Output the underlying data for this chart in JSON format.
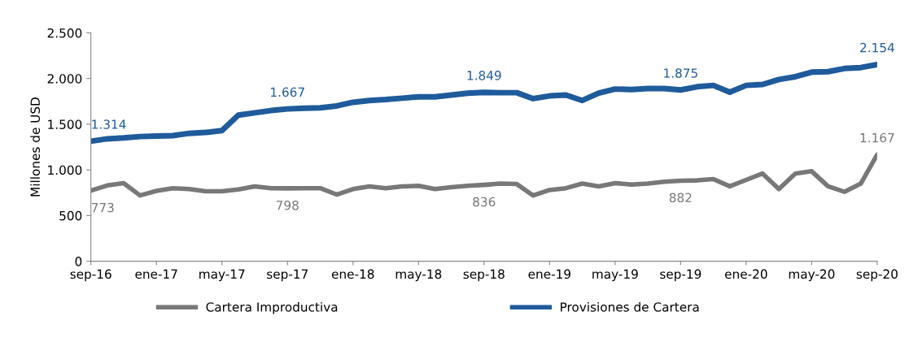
{
  "chart_data": {
    "type": "line",
    "ylabel": "Millones de USD",
    "categories": [
      "sep-16",
      null,
      null,
      null,
      "ene-17",
      null,
      null,
      null,
      "may-17",
      null,
      null,
      null,
      "sep-17",
      null,
      null,
      null,
      "ene-18",
      null,
      null,
      null,
      "may-18",
      null,
      null,
      null,
      "sep-18",
      null,
      null,
      null,
      "ene-19",
      null,
      null,
      null,
      "may-19",
      null,
      null,
      null,
      "sep-19",
      null,
      null,
      null,
      "ene-20",
      null,
      null,
      null,
      "may-20",
      null,
      null,
      null,
      "sep-20"
    ],
    "series": [
      {
        "name": "Cartera Improductiva",
        "color": "#787878",
        "values": [
          773,
          830,
          855,
          720,
          770,
          800,
          790,
          765,
          765,
          785,
          820,
          800,
          798,
          800,
          800,
          730,
          790,
          820,
          800,
          820,
          825,
          790,
          810,
          825,
          836,
          850,
          845,
          720,
          780,
          800,
          850,
          820,
          855,
          840,
          850,
          870,
          882,
          885,
          900,
          820,
          890,
          960,
          790,
          960,
          985,
          820,
          760,
          850,
          1167
        ],
        "value_labels": [
          "773",
          null,
          null,
          null,
          null,
          null,
          null,
          null,
          null,
          null,
          null,
          null,
          "798",
          null,
          null,
          null,
          null,
          null,
          null,
          null,
          null,
          null,
          null,
          null,
          "836",
          null,
          null,
          null,
          null,
          null,
          null,
          null,
          null,
          null,
          null,
          null,
          "882",
          null,
          null,
          null,
          null,
          null,
          null,
          null,
          null,
          null,
          null,
          null,
          "1.167"
        ]
      },
      {
        "name": "Provisiones de Cartera",
        "color": "#1f5b9b",
        "values": [
          1314,
          1340,
          1350,
          1365,
          1370,
          1375,
          1400,
          1410,
          1430,
          1600,
          1625,
          1650,
          1667,
          1675,
          1680,
          1700,
          1740,
          1760,
          1770,
          1785,
          1800,
          1800,
          1820,
          1840,
          1849,
          1845,
          1845,
          1780,
          1810,
          1820,
          1760,
          1840,
          1885,
          1880,
          1890,
          1890,
          1875,
          1910,
          1925,
          1850,
          1925,
          1935,
          1990,
          2020,
          2070,
          2075,
          2110,
          2120,
          2154
        ],
        "value_labels": [
          "1.314",
          null,
          null,
          null,
          null,
          null,
          null,
          null,
          null,
          null,
          null,
          null,
          "1.667",
          null,
          null,
          null,
          null,
          null,
          null,
          null,
          null,
          null,
          null,
          null,
          "1.849",
          null,
          null,
          null,
          null,
          null,
          null,
          null,
          null,
          null,
          null,
          null,
          "1.875",
          null,
          null,
          null,
          null,
          null,
          null,
          null,
          null,
          null,
          null,
          null,
          "2.154"
        ]
      }
    ],
    "ylim": [
      0,
      2500
    ],
    "yticks": [
      0,
      500,
      {
        "value": 1000,
        "label": "1.000"
      },
      {
        "value": 1500,
        "label": "1.500"
      },
      {
        "value": 2000,
        "label": "2.000"
      },
      {
        "value": 2500,
        "label": "2.500"
      }
    ],
    "grid": false,
    "legend": "bottom",
    "marker": "none",
    "line_style": "solid"
  }
}
